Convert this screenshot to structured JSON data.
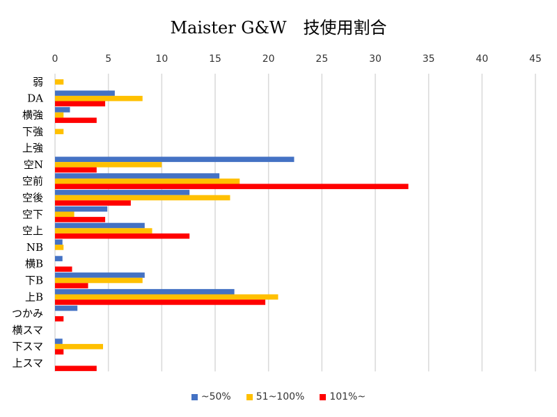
{
  "chart_data": {
    "type": "bar",
    "orientation": "horizontal",
    "title": "Maister G&W　技使用割合",
    "categories": [
      "弱",
      "DA",
      "横強",
      "下強",
      "上強",
      "空N",
      "空前",
      "空後",
      "空下",
      "空上",
      "NB",
      "横B",
      "下B",
      "上B",
      "つかみ",
      "横スマ",
      "下スマ",
      "上スマ"
    ],
    "series": [
      {
        "name": "~50%",
        "color": "#4472C4",
        "values": [
          0,
          5.6,
          1.4,
          0,
          0,
          22.4,
          15.4,
          12.6,
          4.9,
          8.4,
          0.7,
          0.7,
          8.4,
          16.8,
          2.1,
          0,
          0.7,
          0
        ]
      },
      {
        "name": "51~100%",
        "color": "#FFC000",
        "values": [
          0.8,
          8.2,
          0.8,
          0.8,
          0,
          10.0,
          17.3,
          16.4,
          1.8,
          9.1,
          0.8,
          0,
          8.2,
          20.9,
          0,
          0,
          4.5,
          0
        ]
      },
      {
        "name": "101%~",
        "color": "#FF0000",
        "values": [
          0,
          4.7,
          3.9,
          0,
          0,
          3.9,
          33.1,
          7.1,
          4.7,
          12.6,
          0,
          1.6,
          3.1,
          19.7,
          0.8,
          0,
          0.8,
          3.9
        ]
      }
    ],
    "xlim": [
      0,
      45
    ],
    "xticks": [
      0,
      5,
      10,
      15,
      20,
      25,
      30,
      35,
      40,
      45
    ],
    "xlabel": "",
    "ylabel": "",
    "grid": "vertical",
    "legend_position": "bottom"
  }
}
